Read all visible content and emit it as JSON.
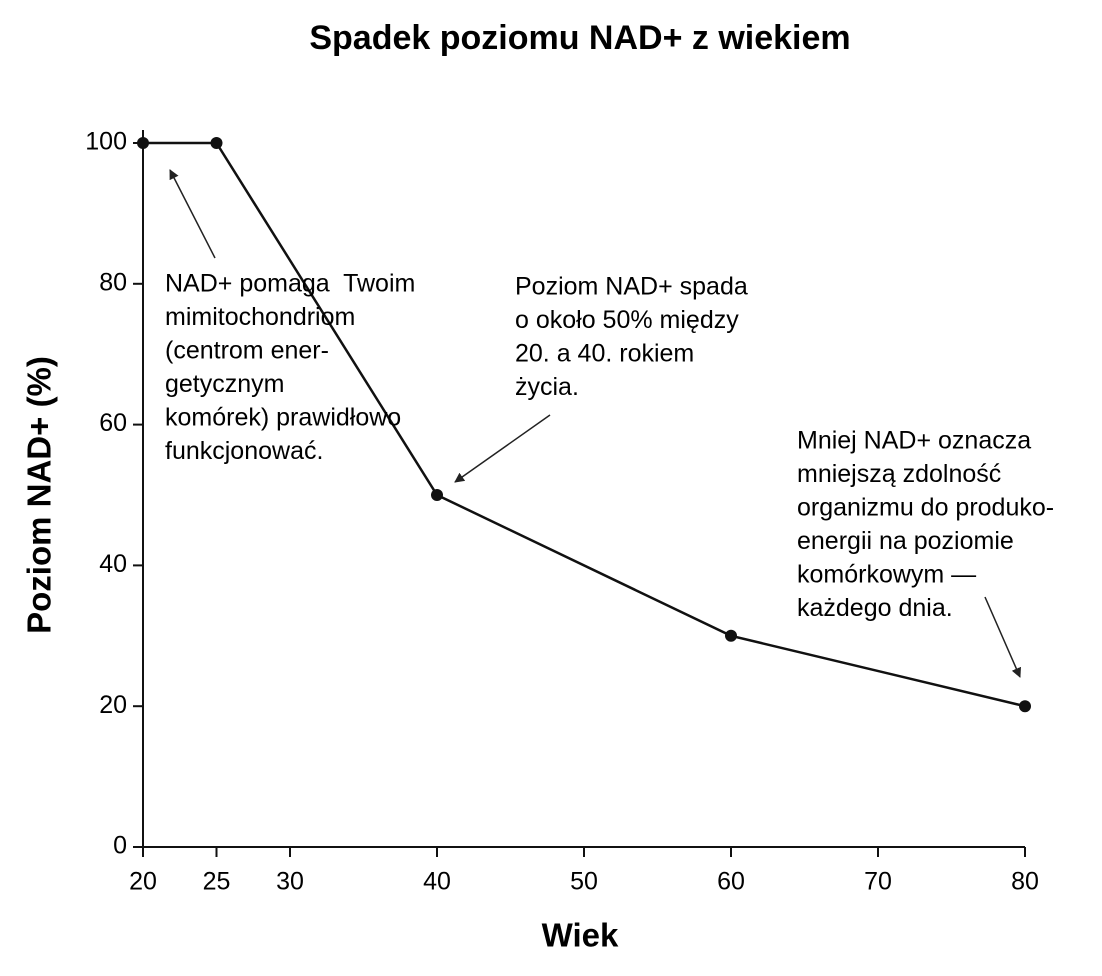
{
  "chart_data": {
    "type": "line",
    "title": "Spadek poziomu NAD+ z wiekiem",
    "x_label": "Wiek",
    "y_label": "Poziom NAD+ (%)",
    "x": [
      20,
      25,
      40,
      60,
      80
    ],
    "values": [
      100,
      100,
      50,
      30,
      20
    ],
    "color": "#111111",
    "xlim": [
      20,
      80
    ],
    "ylim": [
      0,
      100
    ],
    "xticks": [
      20,
      25,
      30,
      40,
      50,
      60,
      70,
      80
    ],
    "yticks": [
      0,
      20,
      40,
      60,
      80,
      100
    ],
    "grid": false,
    "annotations": [
      [
        "NAD+ pomaga  Twoim",
        "mimitochondriom",
        "(centrom ener-",
        "getycznym",
        "komórek) prawidłowo",
        "funkcjonować."
      ],
      [
        "Poziom NAD+ spada",
        "o około 50% między",
        "20. a 40. rokiem",
        "życia."
      ],
      [
        "Mniej NAD+ oznacza",
        "mniejszą zdolność",
        "organizmu do produko-",
        "energii na poziomie",
        "komórkowym —",
        "każdego dnia."
      ]
    ]
  }
}
